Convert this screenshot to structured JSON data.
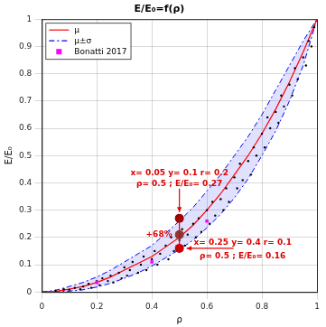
{
  "chart_data": {
    "type": "scatter",
    "title": "E/E₀=f(ρ)",
    "x_label": "ρ",
    "y_label": "E/E₀",
    "xlim": [
      0,
      1
    ],
    "ylim": [
      0,
      1
    ],
    "xticks": [
      0,
      0.2,
      0.4,
      0.6,
      0.8,
      1
    ],
    "yticks": [
      0,
      0.1,
      0.2,
      0.3,
      0.4,
      0.5,
      0.6,
      0.7,
      0.8,
      0.9,
      1
    ],
    "grid": true,
    "legend": "upper left",
    "series": [
      {
        "name": "μ±σ",
        "type": "band",
        "color": "#0000ff",
        "line_style": "dashdot",
        "x": [
          0,
          0.05,
          0.1,
          0.15,
          0.2,
          0.25,
          0.3,
          0.35,
          0.4,
          0.45,
          0.5,
          0.55,
          0.6,
          0.65,
          0.7,
          0.75,
          0.8,
          0.85,
          0.9,
          0.95,
          1
        ],
        "upper": [
          0,
          0.006,
          0.02,
          0.035,
          0.055,
          0.08,
          0.11,
          0.14,
          0.17,
          0.215,
          0.26,
          0.31,
          0.37,
          0.43,
          0.5,
          0.57,
          0.65,
          0.74,
          0.83,
          0.92,
          1
        ],
        "lower": [
          0,
          0,
          0.003,
          0.008,
          0.018,
          0.032,
          0.05,
          0.07,
          0.095,
          0.125,
          0.155,
          0.19,
          0.235,
          0.285,
          0.345,
          0.415,
          0.5,
          0.59,
          0.7,
          0.83,
          1
        ]
      },
      {
        "name": "μ",
        "type": "line",
        "color": "#ff0000",
        "line_style": "solid",
        "x": [
          0,
          0.05,
          0.1,
          0.15,
          0.2,
          0.25,
          0.3,
          0.35,
          0.4,
          0.45,
          0.5,
          0.55,
          0.6,
          0.65,
          0.7,
          0.75,
          0.8,
          0.85,
          0.9,
          0.95,
          1
        ],
        "values": [
          0,
          0.002,
          0.01,
          0.02,
          0.035,
          0.055,
          0.08,
          0.105,
          0.13,
          0.165,
          0.2,
          0.245,
          0.3,
          0.36,
          0.43,
          0.5,
          0.58,
          0.67,
          0.77,
          0.88,
          1
        ]
      },
      {
        "type": "scatter",
        "color": "#000000",
        "marker": "circle",
        "x": [
          0.05,
          0.08,
          0.1,
          0.12,
          0.14,
          0.15,
          0.17,
          0.18,
          0.2,
          0.21,
          0.22,
          0.24,
          0.25,
          0.26,
          0.28,
          0.29,
          0.3,
          0.31,
          0.32,
          0.33,
          0.35,
          0.36,
          0.37,
          0.38,
          0.4,
          0.41,
          0.42,
          0.43,
          0.45,
          0.46,
          0.47,
          0.48,
          0.5,
          0.51,
          0.52,
          0.53,
          0.55,
          0.56,
          0.57,
          0.58,
          0.6,
          0.61,
          0.62,
          0.63,
          0.65,
          0.66,
          0.67,
          0.68,
          0.7,
          0.71,
          0.72,
          0.73,
          0.75,
          0.76,
          0.77,
          0.78,
          0.8,
          0.81,
          0.82,
          0.83,
          0.85,
          0.86,
          0.87,
          0.88,
          0.9,
          0.91,
          0.92,
          0.93,
          0.95,
          0.96,
          0.97,
          0.98,
          0.99
        ],
        "values": [
          0.005,
          0.01,
          0.008,
          0.015,
          0.01,
          0.02,
          0.03,
          0.015,
          0.04,
          0.025,
          0.05,
          0.04,
          0.06,
          0.035,
          0.07,
          0.05,
          0.09,
          0.06,
          0.08,
          0.11,
          0.07,
          0.1,
          0.13,
          0.08,
          0.12,
          0.15,
          0.1,
          0.14,
          0.17,
          0.12,
          0.2,
          0.15,
          0.19,
          0.23,
          0.17,
          0.21,
          0.25,
          0.2,
          0.27,
          0.22,
          0.3,
          0.25,
          0.33,
          0.28,
          0.34,
          0.3,
          0.38,
          0.33,
          0.42,
          0.38,
          0.47,
          0.41,
          0.48,
          0.43,
          0.53,
          0.5,
          0.58,
          0.53,
          0.64,
          0.6,
          0.66,
          0.62,
          0.72,
          0.68,
          0.76,
          0.72,
          0.82,
          0.78,
          0.86,
          0.83,
          0.92,
          0.9,
          0.97
        ]
      },
      {
        "name": "Bonatti 2017",
        "type": "scatter",
        "color": "#ff00ff",
        "marker": "square",
        "x": [
          0.2,
          0.4,
          0.6
        ],
        "values": [
          0.035,
          0.11,
          0.26
        ]
      },
      {
        "type": "scatter",
        "marker": "circle",
        "colors": [
          "#a00000",
          "#8b3a3a",
          "#c80000"
        ],
        "x": [
          0.5,
          0.5,
          0.5
        ],
        "values": [
          0.27,
          0.21,
          0.16
        ]
      }
    ],
    "annotations": [
      {
        "lines": [
          "x= 0.05 y= 0.1 r= 0.2",
          "ρ= 0.5 ; E/E₀= 0.27"
        ]
      },
      {
        "lines": [
          "+68%"
        ]
      },
      {
        "lines": [
          "x= 0.25 y= 0.4 r= 0.1",
          "ρ= 0.5 ; E/E₀= 0.16"
        ]
      }
    ]
  }
}
